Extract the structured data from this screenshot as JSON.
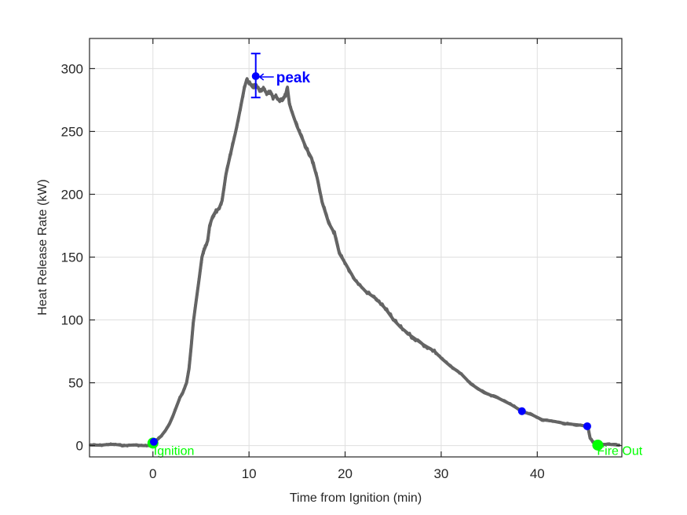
{
  "chart_data": {
    "type": "line",
    "title": "",
    "xlabel": "Time from Ignition (min)",
    "ylabel": "Heat Release Rate (kW)",
    "xlim": [
      -6.6,
      48.8
    ],
    "ylim": [
      -9,
      324
    ],
    "xticks": [
      0,
      10,
      20,
      30,
      40
    ],
    "yticks": [
      0,
      50,
      100,
      150,
      200,
      250,
      300
    ],
    "grid": true,
    "legend": null,
    "series": [
      {
        "name": "Heat Release Rate",
        "color": "#646464",
        "x": [
          -6.5,
          -5.5,
          -4.5,
          -3.8,
          -3.0,
          -2.0,
          -1.0,
          -0.3,
          0.0,
          0.5,
          0.9,
          1.3,
          1.7,
          2.1,
          2.5,
          2.8,
          3.1,
          3.3,
          3.5,
          3.75,
          4.0,
          4.2,
          4.5,
          4.8,
          5.1,
          5.3,
          5.5,
          5.7,
          5.9,
          6.2,
          6.5,
          6.9,
          7.2,
          7.6,
          8.1,
          8.65,
          9.1,
          9.5,
          9.75,
          10.0,
          10.4,
          10.7,
          11.1,
          11.5,
          11.9,
          12.2,
          12.5,
          12.8,
          13.2,
          13.5,
          13.8,
          14.0,
          14.2,
          14.4,
          15.0,
          15.5,
          16.0,
          16.5,
          17.1,
          17.6,
          18.3,
          18.9,
          19.4,
          20.1,
          21.0,
          22.1,
          23.2,
          24.2,
          25.0,
          25.8,
          26.9,
          28.2,
          29.3,
          30.1,
          31.0,
          32.1,
          33.1,
          34.5,
          35.9,
          37.2,
          38.4,
          39.4,
          40.5,
          41.6,
          42.9,
          44.3,
          45.25,
          45.5,
          45.9,
          46.3,
          47.3,
          48.5
        ],
        "y": [
          0.5,
          0.3,
          1.0,
          0.8,
          0.0,
          0.5,
          0.0,
          0.0,
          2.0,
          5.0,
          8.0,
          12.0,
          17.0,
          24.0,
          32.0,
          38.0,
          42.0,
          46.0,
          50.0,
          61.0,
          80.0,
          98.0,
          115.0,
          132.0,
          150.0,
          155.0,
          159.0,
          163.0,
          175.0,
          182.0,
          186.0,
          189.0,
          195.0,
          216.0,
          233.0,
          251.0,
          268.0,
          284.0,
          291.0,
          289.0,
          285.0,
          287.0,
          283.0,
          284.0,
          280.0,
          282.0,
          277.0,
          278.0,
          274.0,
          276.0,
          279.0,
          285.0,
          272.0,
          267.0,
          254.0,
          245.0,
          236.0,
          229.0,
          213.0,
          194.0,
          177.0,
          169.0,
          153.0,
          144.0,
          132.0,
          123.0,
          117.0,
          109.0,
          100.5,
          94.0,
          87.0,
          80.0,
          75.0,
          69.0,
          63.0,
          57.0,
          49.0,
          42.0,
          38.0,
          33.0,
          27.4,
          24.7,
          20.6,
          19.5,
          17.5,
          16.4,
          15.4,
          6.0,
          2.0,
          0.4,
          1.2,
          0.4
        ]
      }
    ],
    "markers": [
      {
        "name": "ignition-marker",
        "x": 0.0,
        "y": 2.0,
        "color": "#00ff00",
        "size": 7
      },
      {
        "name": "ignition-point",
        "x": 0.1,
        "y": 3.0,
        "color": "#0000ff",
        "size": 5
      },
      {
        "name": "peak-point",
        "x": 10.7,
        "y": 294,
        "color": "#0000ff",
        "size": 5
      },
      {
        "name": "decay-point-1",
        "x": 38.4,
        "y": 27.4,
        "color": "#0000ff",
        "size": 5
      },
      {
        "name": "decay-point-2",
        "x": 45.2,
        "y": 15.4,
        "color": "#0000ff",
        "size": 5
      },
      {
        "name": "fire-out-marker",
        "x": 46.3,
        "y": 0.4,
        "color": "#00ff00",
        "size": 7
      }
    ],
    "errorbar": {
      "x": 10.7,
      "y": 294,
      "low": 277,
      "high": 312,
      "color": "#0000ff"
    },
    "annotations": [
      {
        "text": "peak",
        "x": 10.7,
        "y": 294,
        "color": "#0000ff",
        "style": "arrow-label"
      },
      {
        "text": "Ignition",
        "x": 0.0,
        "y": 0.0,
        "color": "#00ff00"
      },
      {
        "text": "Fire Out",
        "x": 46.3,
        "y": 0.0,
        "color": "#00ff00"
      }
    ]
  },
  "axes": {
    "xlabel": "Time from Ignition (min)",
    "ylabel": "Heat Release Rate (kW)",
    "xtick_labels": [
      "0",
      "10",
      "20",
      "30",
      "40"
    ],
    "ytick_labels": [
      "0",
      "50",
      "100",
      "150",
      "200",
      "250",
      "300"
    ]
  },
  "annotations": {
    "peak": "peak",
    "ignition": "Ignition",
    "fire_out": "Fire Out"
  }
}
